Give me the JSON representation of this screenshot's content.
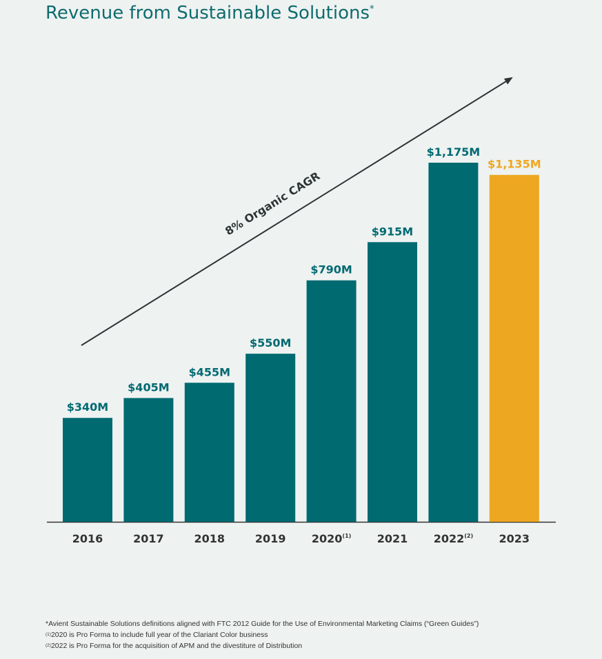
{
  "title": {
    "text": "Revenue from Sustainable Solutions",
    "marker": "*"
  },
  "chart_data": {
    "type": "bar",
    "title": "Revenue from Sustainable Solutions",
    "categories": [
      "2016",
      "2017",
      "2018",
      "2019",
      "2020",
      "2021",
      "2022",
      "2023"
    ],
    "category_superscripts": [
      "",
      "",
      "",
      "",
      "(1)",
      "",
      "(2)",
      ""
    ],
    "values": [
      340,
      405,
      455,
      550,
      790,
      915,
      1175,
      1135
    ],
    "value_labels": [
      "$340M",
      "$405M",
      "$455M",
      "$550M",
      "$790M",
      "$915M",
      "$1,175M",
      "$1,135M"
    ],
    "unit": "$M",
    "highlight_index": 7,
    "ylim": [
      0,
      1175
    ],
    "xlabel": "",
    "ylabel": "",
    "annotation": "8% Organic CAGR",
    "colors": {
      "bar": "#006a71",
      "highlight": "#eea720",
      "arrow": "#2d3436",
      "axis": "#333333"
    }
  },
  "footnotes": {
    "note_star": "*Avient Sustainable Solutions definitions aligned with FTC 2012 Guide for the Use of Environmental Marketing Claims (“Green Guides”)",
    "note1_marker": "(1)",
    "note1_text": "2020 is Pro Forma to include full year of the Clariant Color business",
    "note2_marker": "(2)",
    "note2_text": "2022 is Pro Forma for the acquisition of APM and the divestiture of Distribution"
  }
}
